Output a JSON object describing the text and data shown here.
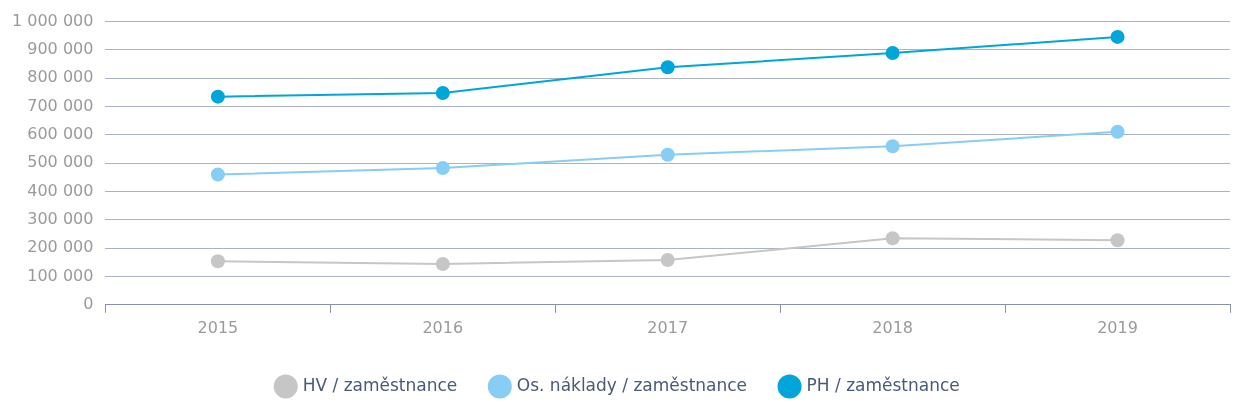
{
  "chart_data": {
    "type": "line",
    "categories": [
      "2015",
      "2016",
      "2017",
      "2018",
      "2019"
    ],
    "series": [
      {
        "name": "HV / zaměstnance",
        "color": "#c6c6c6",
        "values": [
          154000,
          144000,
          158000,
          235000,
          228000
        ]
      },
      {
        "name": "Os. náklady / zaměstnance",
        "color": "#87cdf4",
        "values": [
          460000,
          483000,
          530000,
          560000,
          611000
        ]
      },
      {
        "name": "PH / zaměstnance",
        "color": "#00a5d9",
        "values": [
          735000,
          748000,
          839000,
          889000,
          946000
        ]
      }
    ],
    "ylim": [
      0,
      1000000
    ],
    "yticks": [
      0,
      {
        "value": 100000,
        "label": "100 000"
      },
      {
        "value": 200000,
        "label": "200 000"
      },
      {
        "value": 300000,
        "label": "300 000"
      },
      {
        "value": 400000,
        "label": "400 000"
      },
      {
        "value": 500000,
        "label": "500 000"
      },
      {
        "value": 600000,
        "label": "600 000"
      },
      {
        "value": 700000,
        "label": "700 000"
      },
      {
        "value": 800000,
        "label": "800 000"
      },
      {
        "value": 900000,
        "label": "900 000"
      },
      {
        "value": 1000000,
        "label": "1 000 000"
      }
    ],
    "grid": "y",
    "legend": "bottom",
    "marker": "circle",
    "line_style": "solid"
  }
}
